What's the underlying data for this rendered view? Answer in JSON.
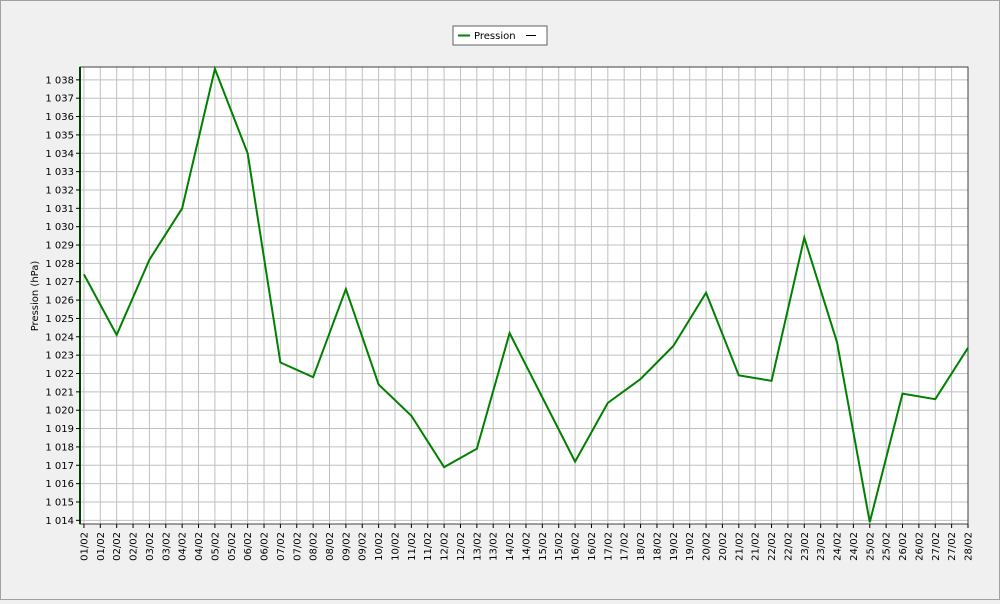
{
  "chart_data": {
    "type": "line",
    "y_label": "Pression (hPa)",
    "x": [
      1,
      2,
      3,
      4,
      5,
      6,
      7,
      8,
      9,
      10,
      11,
      12,
      13,
      14,
      15,
      16,
      17,
      18,
      19,
      20,
      21,
      22,
      23,
      24,
      25,
      26,
      27,
      28
    ],
    "series": [
      {
        "name": "Pression",
        "color": "#008000",
        "values": [
          1027.4,
          1024.1,
          1028.2,
          1031.0,
          1038.6,
          1034.0,
          1022.6,
          1021.8,
          1026.6,
          1021.4,
          1019.7,
          1016.9,
          1017.9,
          1024.2,
          1020.7,
          1017.2,
          1020.4,
          1021.7,
          1023.5,
          1026.4,
          1021.9,
          1021.6,
          1029.4,
          1023.7,
          1013.9,
          1020.9,
          1020.6,
          1023.4
        ]
      }
    ],
    "xlim": [
      0.88,
      28
    ],
    "xticks": [
      {
        "value": 1,
        "label": "01/02"
      },
      {
        "value": 1.5,
        "label": "01/02"
      },
      {
        "value": 2,
        "label": "02/02"
      },
      {
        "value": 2.5,
        "label": "02/02"
      },
      {
        "value": 3,
        "label": "03/02"
      },
      {
        "value": 3.5,
        "label": "03/02"
      },
      {
        "value": 4,
        "label": "04/02"
      },
      {
        "value": 4.5,
        "label": "04/02"
      },
      {
        "value": 5,
        "label": "05/02"
      },
      {
        "value": 5.5,
        "label": "05/02"
      },
      {
        "value": 6,
        "label": "06/02"
      },
      {
        "value": 6.5,
        "label": "06/02"
      },
      {
        "value": 7,
        "label": "07/02"
      },
      {
        "value": 7.5,
        "label": "07/02"
      },
      {
        "value": 8,
        "label": "08/02"
      },
      {
        "value": 8.5,
        "label": "08/02"
      },
      {
        "value": 9,
        "label": "09/02"
      },
      {
        "value": 9.5,
        "label": "09/02"
      },
      {
        "value": 10,
        "label": "10/02"
      },
      {
        "value": 10.5,
        "label": "10/02"
      },
      {
        "value": 11,
        "label": "11/02"
      },
      {
        "value": 11.5,
        "label": "11/02"
      },
      {
        "value": 12,
        "label": "12/02"
      },
      {
        "value": 12.5,
        "label": "12/02"
      },
      {
        "value": 13,
        "label": "13/02"
      },
      {
        "value": 13.5,
        "label": "13/02"
      },
      {
        "value": 14,
        "label": "14/02"
      },
      {
        "value": 14.5,
        "label": "14/02"
      },
      {
        "value": 15,
        "label": "15/02"
      },
      {
        "value": 15.5,
        "label": "15/02"
      },
      {
        "value": 16,
        "label": "16/02"
      },
      {
        "value": 16.5,
        "label": "16/02"
      },
      {
        "value": 17,
        "label": "17/02"
      },
      {
        "value": 17.5,
        "label": "17/02"
      },
      {
        "value": 18,
        "label": "18/02"
      },
      {
        "value": 18.5,
        "label": "18/02"
      },
      {
        "value": 19,
        "label": "19/02"
      },
      {
        "value": 19.5,
        "label": "19/02"
      },
      {
        "value": 20,
        "label": "20/02"
      },
      {
        "value": 20.5,
        "label": "20/02"
      },
      {
        "value": 21,
        "label": "21/02"
      },
      {
        "value": 21.5,
        "label": "21/02"
      },
      {
        "value": 22,
        "label": "22/02"
      },
      {
        "value": 22.5,
        "label": "22/02"
      },
      {
        "value": 23,
        "label": "23/02"
      },
      {
        "value": 23.5,
        "label": "23/02"
      },
      {
        "value": 24,
        "label": "24/02"
      },
      {
        "value": 24.5,
        "label": "24/02"
      },
      {
        "value": 25,
        "label": "25/02"
      },
      {
        "value": 25.5,
        "label": "25/02"
      },
      {
        "value": 26,
        "label": "26/02"
      },
      {
        "value": 26.5,
        "label": "26/02"
      },
      {
        "value": 27,
        "label": "27/02"
      },
      {
        "value": 27.5,
        "label": "27/02"
      },
      {
        "value": 28,
        "label": "28/02"
      }
    ],
    "ylim": [
      1013.8,
      1038.7
    ],
    "yticks": [
      {
        "value": 1014,
        "label": "1 014"
      },
      {
        "value": 1015,
        "label": "1 015"
      },
      {
        "value": 1016,
        "label": "1 016"
      },
      {
        "value": 1017,
        "label": "1 017"
      },
      {
        "value": 1018,
        "label": "1 018"
      },
      {
        "value": 1019,
        "label": "1 019"
      },
      {
        "value": 1020,
        "label": "1 020"
      },
      {
        "value": 1021,
        "label": "1 021"
      },
      {
        "value": 1022,
        "label": "1 022"
      },
      {
        "value": 1023,
        "label": "1 023"
      },
      {
        "value": 1024,
        "label": "1 024"
      },
      {
        "value": 1025,
        "label": "1 025"
      },
      {
        "value": 1026,
        "label": "1 026"
      },
      {
        "value": 1027,
        "label": "1 027"
      },
      {
        "value": 1028,
        "label": "1 028"
      },
      {
        "value": 1029,
        "label": "1 029"
      },
      {
        "value": 1030,
        "label": "1 030"
      },
      {
        "value": 1031,
        "label": "1 031"
      },
      {
        "value": 1032,
        "label": "1 032"
      },
      {
        "value": 1033,
        "label": "1 033"
      },
      {
        "value": 1034,
        "label": "1 034"
      },
      {
        "value": 1035,
        "label": "1 035"
      },
      {
        "value": 1036,
        "label": "1 036"
      },
      {
        "value": 1037,
        "label": "1 037"
      },
      {
        "value": 1038,
        "label": "1 038"
      }
    ],
    "grid": true
  }
}
